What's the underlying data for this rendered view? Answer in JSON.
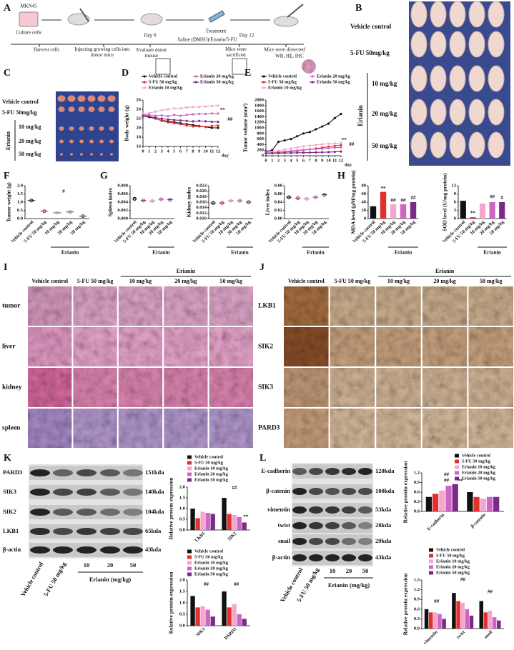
{
  "figure": {
    "letters": [
      "A",
      "B",
      "C",
      "D",
      "E",
      "F",
      "G",
      "H",
      "I",
      "J",
      "K",
      "L"
    ],
    "A": {
      "cell_line": "MKN45",
      "culture": "Culture cells",
      "harvest": "Harvest cells",
      "inject": "Injecting growing cells into donor mice",
      "day0": "Day 0",
      "evaluate": "Evaluate donor mouse",
      "treatment": "Treatment",
      "regimen": "Saline (DMSO)/Erianin/5-FU",
      "day12": "Day 12",
      "sacrificed": "Mice were sacrificed",
      "dissected": "Mice were dissected",
      "assays": "WB, HE, IHC"
    },
    "B": {
      "groups": [
        "Vehicle control",
        "5-FU 50mg/kg",
        "10 mg/kg",
        "20 mg/kg",
        "50 mg/kg"
      ],
      "drug": "Erianin"
    },
    "C": {
      "groups": [
        "Vehicle control",
        "5-FU 50mg/kg",
        "10 mg/kg",
        "20 mg/kg",
        "50 mg/kg"
      ],
      "drug": "Erianin"
    },
    "I": {
      "columns": [
        "Vehicle control",
        "5-FU 50 mg/kg",
        "10 mg/kg",
        "20 mg/kg",
        "50 mg/kg"
      ],
      "drug": "Erianin",
      "rows": [
        "tumor",
        "liver",
        "kidney",
        "spleen"
      ]
    },
    "J": {
      "columns": [
        "Vehicle control",
        "5-FU 50 mg/kg",
        "10 mg/kg",
        "20 mg/kg",
        "50 mg/kg"
      ],
      "drug": "Erianin",
      "rows": [
        "LKB1",
        "SIK2",
        "SIK3",
        "PARD3"
      ]
    },
    "K": {
      "proteins": [
        "PARD3",
        "SIK3",
        "SIK2",
        "LKB1",
        "β-actin"
      ],
      "sizes": [
        "151kda",
        "140kda",
        "104kda",
        "65kda",
        "43kda"
      ],
      "lanes": [
        "Vehicle control",
        "5-FU 50 mg/kg",
        "10",
        "20",
        "50"
      ],
      "dose_label": "Erianin (mg/kg)"
    },
    "L": {
      "proteins": [
        "E-cadherin",
        "β-catenin",
        "vimentin",
        "twist",
        "snail",
        "β-actin"
      ],
      "sizes": [
        "120kda",
        "100kda",
        "53kda",
        "28kda",
        "29kda",
        "43kda"
      ],
      "lanes": [
        "Vehicle control",
        "5-FU 50 mg/kg",
        "10",
        "20",
        "50"
      ],
      "dose_label": "Erianin (mg/kg)"
    }
  },
  "chart_data": [
    {
      "type": "line",
      "ylabel": "Body weight (g)",
      "xlabel": "day",
      "x": [
        0,
        1,
        2,
        3,
        4,
        5,
        6,
        7,
        8,
        9,
        10,
        11,
        12
      ],
      "xlim": [
        0,
        12
      ],
      "xticks": [
        0,
        1,
        2,
        3,
        4,
        5,
        6,
        7,
        8,
        9,
        10,
        11,
        12
      ],
      "ylim": [
        16,
        26
      ],
      "yticks": [
        16,
        18,
        20,
        22,
        24,
        26
      ],
      "series": [
        {
          "name": "Vehicle control",
          "color": "#111111",
          "values": [
            22.5,
            22.3,
            22,
            21.6,
            21.4,
            21.2,
            21,
            20.8,
            20.6,
            20.4,
            20.2,
            20,
            20
          ]
        },
        {
          "name": "5-FU 50 mg/kg",
          "color": "#e0312f",
          "values": [
            22.8,
            22.5,
            22,
            21.5,
            21.2,
            21,
            20.8,
            20.5,
            20.3,
            20.3,
            20.2,
            20.4,
            20.5
          ]
        },
        {
          "name": "Erianin 10 mg/kg",
          "color": "#f4a6cf",
          "values": [
            23,
            23.2,
            23.5,
            23.8,
            24,
            24.2,
            24.2,
            24.4,
            24.5,
            24.5,
            24.6,
            24.7,
            24.8
          ]
        },
        {
          "name": "Erianin 20 mg/kg",
          "color": "#cc66c2",
          "values": [
            22.8,
            22.8,
            22.6,
            22.7,
            22.5,
            22.8,
            22.6,
            22.8,
            22.9,
            23,
            23,
            23.1,
            23.1
          ]
        },
        {
          "name": "Erianin 50 mg/kg",
          "color": "#7a2b88",
          "values": [
            22.5,
            22.4,
            22.2,
            22,
            21.8,
            21.7,
            21.6,
            21.5,
            21.4,
            21.5,
            21.4,
            21.3,
            21.3
          ]
        }
      ],
      "annotations": [
        "**",
        "##"
      ]
    },
    {
      "type": "line",
      "ylabel": "Tumor volume (mm³)",
      "xlabel": "day",
      "x": [
        0,
        1,
        2,
        3,
        4,
        5,
        6,
        7,
        8,
        9,
        10,
        11,
        12
      ],
      "xlim": [
        0,
        12
      ],
      "xticks": [
        0,
        1,
        2,
        3,
        4,
        5,
        6,
        7,
        8,
        9,
        10,
        11,
        12
      ],
      "ylim": [
        0,
        2000
      ],
      "yticks": [
        0,
        200,
        400,
        600,
        800,
        1000,
        1200,
        1400,
        1600,
        1800,
        2000
      ],
      "series": [
        {
          "name": "Vehicle control",
          "color": "#111111",
          "values": [
            150,
            200,
            500,
            550,
            600,
            700,
            800,
            850,
            950,
            1050,
            1150,
            1350,
            1500
          ]
        },
        {
          "name": "5-FU 50 mg/kg",
          "color": "#e0312f",
          "values": [
            100,
            110,
            120,
            130,
            150,
            170,
            200,
            230,
            260,
            290,
            320,
            350,
            380
          ]
        },
        {
          "name": "Erianin 10 mg/kg",
          "color": "#f4a6cf",
          "values": [
            120,
            140,
            180,
            220,
            260,
            300,
            330,
            360,
            390,
            410,
            430,
            440,
            450
          ]
        },
        {
          "name": "Erianin 20 mg/kg",
          "color": "#cc66c2",
          "values": [
            100,
            110,
            130,
            150,
            170,
            190,
            210,
            230,
            240,
            250,
            270,
            290,
            300
          ]
        },
        {
          "name": "Erianin 50 mg/kg",
          "color": "#7a2b88",
          "values": [
            80,
            85,
            90,
            95,
            100,
            105,
            110,
            115,
            120,
            125,
            130,
            140,
            150
          ]
        }
      ],
      "annotations": [
        "**",
        "##"
      ]
    },
    {
      "type": "dot",
      "ylabel": "Tumor weight (g)",
      "categories": [
        "Vehicle control",
        "5-FU 50 mg/kg",
        "10 mg/kg",
        "20 mg/kg",
        "50 mg/kg"
      ],
      "group_label": "Erianin",
      "colors": [
        "#111111",
        "#e0312f",
        "#f4a6cf",
        "#cc66c2",
        "#7a2b88"
      ],
      "values": [
        1.1,
        0.45,
        0.35,
        0.4,
        0.15
      ],
      "ylim": [
        0,
        2
      ],
      "yticks": [
        {
          "value": 0,
          "label": "0.0"
        },
        0.5,
        {
          "value": 1,
          "label": "1.0"
        },
        1.5,
        {
          "value": 2,
          "label": "2.0"
        }
      ],
      "annotations": [
        "#"
      ]
    },
    {
      "type": "dot",
      "ylabel": "Spleen index",
      "categories": [
        "Vehicle control",
        "5-FU 50 mg/kg",
        "10 mg/kg",
        "20 mg/kg",
        "50 mg/kg"
      ],
      "group_label": "Erianin",
      "colors": [
        "#111111",
        "#e0312f",
        "#f4a6cf",
        "#cc66c2",
        "#7a2b88"
      ],
      "values": [
        0.0048,
        0.0044,
        0.0043,
        0.0047,
        0.0046
      ],
      "ylim": [
        0,
        0.008
      ],
      "yticks": [
        {
          "value": 0,
          "label": "0.000"
        },
        {
          "value": 0.002,
          "label": "0.002"
        },
        {
          "value": 0.004,
          "label": "0.004"
        },
        {
          "value": 0.006,
          "label": "0.006"
        },
        {
          "value": 0.008,
          "label": "0.008"
        }
      ]
    },
    {
      "type": "dot",
      "ylabel": "Kidney index",
      "categories": [
        "Vehicle control",
        "5-FU 50 mg/kg",
        "10 mg/kg",
        "20 mg/kg",
        "50 mg/kg"
      ],
      "group_label": "Erianin",
      "colors": [
        "#111111",
        "#e0312f",
        "#f4a6cf",
        "#cc66c2",
        "#7a2b88"
      ],
      "values": [
        0.0157,
        0.0157,
        0.0165,
        0.0165,
        0.016
      ],
      "ylim": [
        0.01,
        0.022
      ],
      "yticks": [
        {
          "value": 0.01,
          "label": "0.010"
        },
        0.012,
        0.014,
        0.016,
        0.018,
        {
          "value": 0.02,
          "label": "0.020"
        },
        0.022
      ]
    },
    {
      "type": "dot",
      "ylabel": "Liver index",
      "categories": [
        "Vehicle control",
        "5-FU 50 mg/kg",
        "10 mg/kg",
        "20 mg/kg",
        "50 mg/kg"
      ],
      "group_label": "Erianin",
      "colors": [
        "#111111",
        "#e0312f",
        "#f4a6cf",
        "#cc66c2",
        "#7a2b88"
      ],
      "values": [
        0.052,
        0.05,
        0.048,
        0.052,
        0.058
      ],
      "ylim": [
        0,
        0.08
      ],
      "yticks": [
        {
          "value": 0,
          "label": "0.00"
        },
        0.02,
        0.04,
        0.06,
        {
          "value": 0.08,
          "label": "0.08"
        }
      ]
    },
    {
      "type": "bar",
      "ylabel": "MDA level (μM/mg protein)",
      "categories": [
        "Vehicle control",
        "5-FU 50 mg/kg",
        "10 mg/kg",
        "20 mg/kg",
        "50 mg/kg"
      ],
      "group_label": "Erianin",
      "colors": [
        "#111111",
        "#e0312f",
        "#f4a6cf",
        "#cc66c2",
        "#7a2b88"
      ],
      "values": [
        30,
        65,
        35,
        35,
        40
      ],
      "ylim": [
        0,
        80
      ],
      "yticks": [
        0,
        20,
        40,
        60,
        80
      ],
      "annotations": [
        "**",
        "##",
        "##",
        "##"
      ]
    },
    {
      "type": "bar",
      "ylabel": "SOD level (U/mg protein)",
      "categories": [
        "Vehicle control",
        "5-FU 50 mg/kg",
        "10 mg/kg",
        "20 mg/kg",
        "50 mg/kg"
      ],
      "group_label": "Erianin",
      "colors": [
        "#111111",
        "#e0312f",
        "#f4a6cf",
        "#cc66c2",
        "#7a2b88"
      ],
      "values": [
        6.5,
        0.5,
        5.5,
        6,
        6
      ],
      "ylim": [
        0,
        12
      ],
      "yticks": [
        0,
        3,
        6,
        9,
        12
      ],
      "annotations": [
        "**",
        "##",
        "#"
      ]
    },
    {
      "type": "grouped",
      "ylabel": "Relative protein expression",
      "categories": [
        "LKB1",
        "SIK2"
      ],
      "ylim": [
        0,
        2
      ],
      "yticks": [
        {
          "value": 0,
          "label": "0.0"
        },
        0.5,
        {
          "value": 1,
          "label": "1.0"
        },
        1.5,
        {
          "value": 2,
          "label": "2.0"
        }
      ],
      "series": [
        {
          "name": "Vehicle control",
          "color": "#111111",
          "values": [
            1.0,
            1.5
          ]
        },
        {
          "name": "5-FU 50 mg/kg",
          "color": "#e0312f",
          "values": [
            0.55,
            0.75
          ]
        },
        {
          "name": "Erianin 10 mg/kg",
          "color": "#f4a6cf",
          "values": [
            0.85,
            0.7
          ]
        },
        {
          "name": "Erianin 20 mg/kg",
          "color": "#cc66c2",
          "values": [
            0.8,
            0.6
          ]
        },
        {
          "name": "Erianin 50 mg/kg",
          "color": "#7a2b88",
          "values": [
            0.75,
            0.35
          ]
        }
      ],
      "annotations": [
        "##",
        "**"
      ]
    },
    {
      "type": "grouped",
      "ylabel": "Relative protein expression",
      "categories": [
        "SIK3",
        "PARD3"
      ],
      "ylim": [
        0,
        2
      ],
      "yticks": [
        {
          "value": 0,
          "label": "0.0"
        },
        0.5,
        {
          "value": 1,
          "label": "1.0"
        },
        1.5,
        {
          "value": 2,
          "label": "2.0"
        }
      ],
      "series": [
        {
          "name": "Vehicle control",
          "color": "#111111",
          "values": [
            1.3,
            1.5
          ]
        },
        {
          "name": "5-FU 50 mg/kg",
          "color": "#e0312f",
          "values": [
            0.8,
            0.8
          ]
        },
        {
          "name": "Erianin 10 mg/kg",
          "color": "#f4a6cf",
          "values": [
            0.85,
            0.95
          ]
        },
        {
          "name": "Erianin 20 mg/kg",
          "color": "#cc66c2",
          "values": [
            0.7,
            0.5
          ]
        },
        {
          "name": "Erianin 50 mg/kg",
          "color": "#7a2b88",
          "values": [
            0.4,
            0.3
          ]
        }
      ],
      "annotations": [
        "##",
        "##"
      ]
    },
    {
      "type": "grouped",
      "ylabel": "Relative protein expression",
      "categories": [
        "E-cadherin",
        "β-catenin"
      ],
      "ylim": [
        0,
        1.2
      ],
      "yticks": [
        {
          "value": 0,
          "label": "0.0"
        },
        0.3,
        0.6,
        0.9,
        1.2
      ],
      "series": [
        {
          "name": "Vehicle control",
          "color": "#111111",
          "values": [
            0.45,
            0.6
          ]
        },
        {
          "name": "5-FU 50 mg/kg",
          "color": "#e0312f",
          "values": [
            0.55,
            0.45
          ]
        },
        {
          "name": "Erianin 10 mg/kg",
          "color": "#f4a6cf",
          "values": [
            0.65,
            0.4
          ]
        },
        {
          "name": "Erianin 20 mg/kg",
          "color": "#cc66c2",
          "values": [
            0.8,
            0.45
          ]
        },
        {
          "name": "Erianin 50 mg/kg",
          "color": "#7a2b88",
          "values": [
            0.85,
            0.45
          ]
        }
      ],
      "annotations": [
        "##",
        "##",
        "**"
      ]
    },
    {
      "type": "grouped",
      "ylabel": "Relative protein expression",
      "categories": [
        "vimentin",
        "twist",
        "snail"
      ],
      "ylim": [
        0,
        1.5
      ],
      "yticks": [
        {
          "value": 0,
          "label": "0.0"
        },
        0.3,
        0.6,
        0.9,
        1.2,
        1.5
      ],
      "series": [
        {
          "name": "Vehicle control",
          "color": "#111111",
          "values": [
            0.6,
            1.1,
            0.85
          ]
        },
        {
          "name": "5-FU 50 mg/kg",
          "color": "#e0312f",
          "values": [
            0.5,
            0.85,
            0.5
          ]
        },
        {
          "name": "Erianin 10 mg/kg",
          "color": "#f4a6cf",
          "values": [
            0.5,
            0.8,
            0.55
          ]
        },
        {
          "name": "Erianin 20 mg/kg",
          "color": "#cc66c2",
          "values": [
            0.45,
            0.6,
            0.35
          ]
        },
        {
          "name": "Erianin 50 mg/kg",
          "color": "#7a2b88",
          "values": [
            0.3,
            0.4,
            0.25
          ]
        }
      ],
      "annotations": [
        "##",
        "##",
        "##"
      ]
    }
  ]
}
